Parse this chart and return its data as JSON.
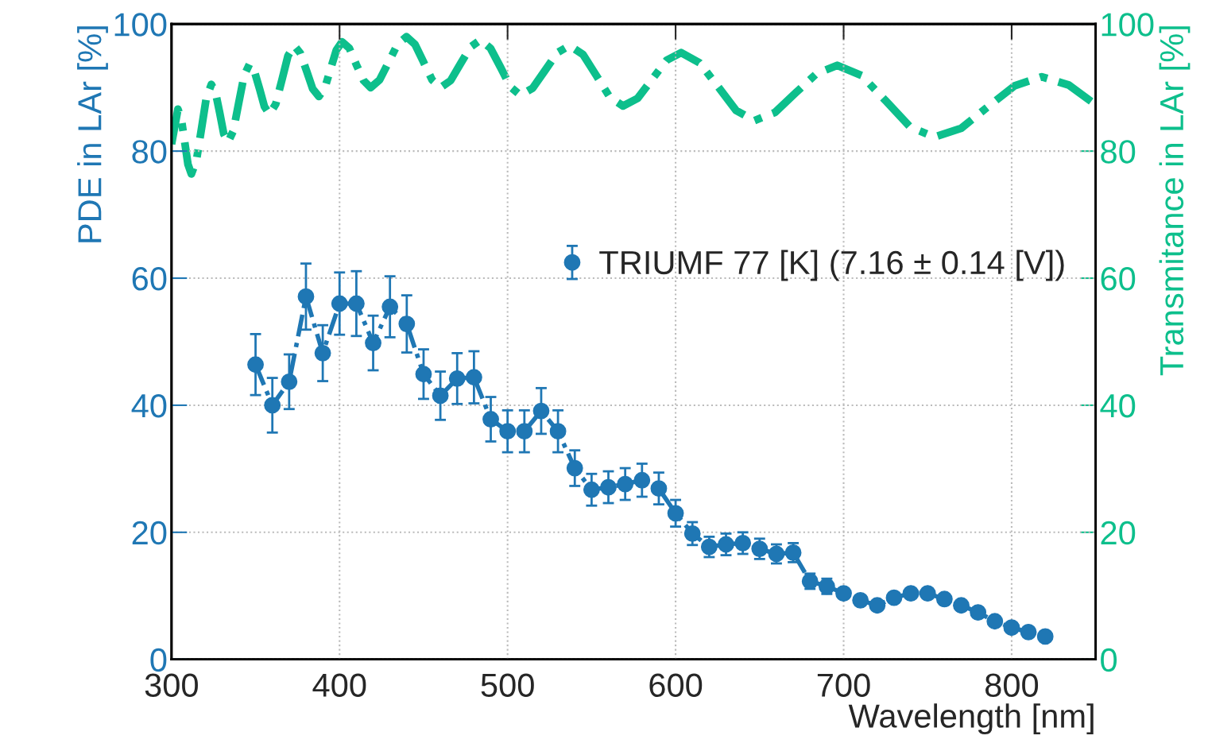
{
  "chart_data": {
    "type": "line",
    "xlabel": "Wavelength [nm]",
    "ylabel": "PDE in LAr [%]",
    "y2label": "Transmitance in LAr [%]",
    "xlim": [
      300,
      850
    ],
    "xticks": [
      300,
      400,
      500,
      600,
      700,
      800
    ],
    "ylim": [
      0,
      100
    ],
    "yticks": [
      0,
      20,
      40,
      60,
      80,
      100
    ],
    "y2lim": [
      0,
      100
    ],
    "y2ticks": [
      0,
      20,
      40,
      60,
      80,
      100
    ],
    "grid": true,
    "legend": "center right",
    "series": [
      {
        "name": "TRIUMF 77 [K] (7.16 ± 0.14 [V])",
        "color": "#1f77b4",
        "marker": "circle",
        "line_style": "dashed",
        "axis": "y",
        "x": [
          350,
          360,
          370,
          380,
          390,
          400,
          410,
          420,
          430,
          440,
          450,
          460,
          470,
          480,
          490,
          500,
          510,
          520,
          530,
          540,
          550,
          560,
          570,
          580,
          590,
          600,
          610,
          620,
          630,
          640,
          650,
          660,
          670,
          680,
          690,
          700,
          710,
          720,
          730,
          740,
          750,
          760,
          770,
          780,
          790,
          800,
          810,
          820
        ],
        "values": [
          46.4,
          40.0,
          43.7,
          57.1,
          48.2,
          56.0,
          56.0,
          49.8,
          55.5,
          52.8,
          44.9,
          41.5,
          44.2,
          44.4,
          37.8,
          35.9,
          35.9,
          39.1,
          35.9,
          30.1,
          26.7,
          27.1,
          27.6,
          28.2,
          26.9,
          23.0,
          19.8,
          17.7,
          18.1,
          18.3,
          17.4,
          16.6,
          16.8,
          12.3,
          11.5,
          10.4,
          9.3,
          8.5,
          9.7,
          10.4,
          10.4,
          9.5,
          8.5,
          7.4,
          6.0,
          5.0,
          4.3,
          3.6
        ],
        "errors": [
          4.8,
          4.3,
          4.3,
          5.2,
          4.4,
          4.9,
          5.1,
          4.3,
          4.8,
          4.5,
          3.9,
          3.8,
          4.0,
          4.1,
          3.5,
          3.3,
          3.3,
          3.6,
          3.3,
          2.8,
          2.5,
          2.5,
          2.5,
          2.6,
          2.5,
          2.1,
          1.8,
          1.6,
          1.7,
          1.7,
          1.6,
          1.5,
          1.5,
          1.2,
          1.2,
          null,
          null,
          null,
          null,
          null,
          null,
          null,
          null,
          null,
          null,
          null,
          null,
          null
        ]
      },
      {
        "color": "#0dbf8c",
        "marker": "none",
        "line_style": "dashed",
        "axis": "y2",
        "x": [
          300,
          303.8,
          305.8,
          307.8,
          309.8,
          311.8,
          314.8,
          317.8,
          320.7,
          323.7,
          326.2,
          328.7,
          331.1,
          333.6,
          336.8,
          340.0,
          343.2,
          346.4,
          349.4,
          352.4,
          355.3,
          358.3,
          362.0,
          365.7,
          369.3,
          373,
          376.7,
          380.4,
          384.0,
          387.7,
          391.2,
          394.6,
          398.1,
          401.5,
          405.8,
          410.0,
          414.3,
          418.5,
          423.8,
          429.2,
          434.5,
          439.8,
          444.9,
          450.0,
          455.1,
          460.2,
          466.1,
          472.1,
          478.0,
          483.9,
          489.8,
          495.8,
          501.7,
          507.6,
          514.9,
          522.3,
          529.6,
          536.9,
          544.9,
          552.8,
          560.8,
          568.7,
          577.4,
          586.0,
          594.7,
          603.3,
          614.2,
          625.1,
          636.0,
          646.9,
          659.2,
          671.6,
          683.9,
          696.2,
          710.7,
          725.1,
          739.6,
          754,
          770.0,
          786.0,
          801.9,
          817.9,
          834.0,
          850
        ],
        "values": [
          81.1,
          86.6,
          85.1,
          81.5,
          77.9,
          76.4,
          78.5,
          83.5,
          88.4,
          90.5,
          89.2,
          86.0,
          82.7,
          81.4,
          83.2,
          87.6,
          91.9,
          93.7,
          92.5,
          89.8,
          87.0,
          85.8,
          87.4,
          91.2,
          95.0,
          96.6,
          95.4,
          92.6,
          89.8,
          88.6,
          89.9,
          92.9,
          95.9,
          97.2,
          96.2,
          93.6,
          91.1,
          90.0,
          91.2,
          94.0,
          96.8,
          98.0,
          96.8,
          94.0,
          91.2,
          90.0,
          91.1,
          93.8,
          96.4,
          97.5,
          96.2,
          93.2,
          90.1,
          88.8,
          89.9,
          92.7,
          95.5,
          96.6,
          95.2,
          91.9,
          88.5,
          87.1,
          88.3,
          91.3,
          94.3,
          95.5,
          93.9,
          90.2,
          86.4,
          84.8,
          86.1,
          89.2,
          92.2,
          93.5,
          91.9,
          87.9,
          83.8,
          82.2,
          83.6,
          87.0,
          90.3,
          91.7,
          90.4,
          87.3
        ]
      }
    ]
  }
}
